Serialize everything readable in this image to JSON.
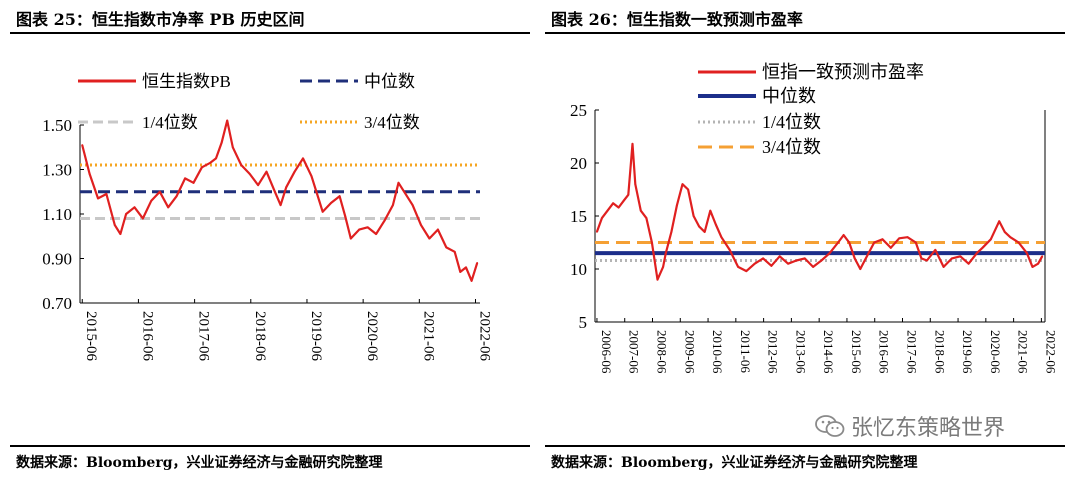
{
  "left": {
    "title": "图表 25：恒生指数市净率 PB 历史区间",
    "source": "数据来源：Bloomberg，兴业证券经济与金融研究院整理"
  },
  "right": {
    "title": "图表 26：恒生指数一致预测市盈率",
    "source": "数据来源：Bloomberg，兴业证券经济与金融研究院整理"
  },
  "watermark": "张忆东策略世界",
  "colors": {
    "series": "#e02020",
    "median": "#1f2f7a",
    "q1_left": "#c8c8c8",
    "q3_left": "#f5a623",
    "median_right": "#1c2e8a",
    "q1_right": "#b4b4b4",
    "q3_right": "#f5a034"
  },
  "chart_data": [
    {
      "type": "line",
      "title": "恒生指数市净率 PB 历史区间",
      "legend": [
        "恒生指数PB",
        "中位数",
        "1/4位数",
        "3/4位数"
      ],
      "categories": [
        "2015-06",
        "2016-06",
        "2017-06",
        "2018-06",
        "2019-06",
        "2020-06",
        "2021-06",
        "2022-06"
      ],
      "yticks": [
        "1.50",
        "1.30",
        "1.10",
        "0.90",
        "0.70"
      ],
      "ylim": [
        0.7,
        1.5
      ],
      "x": [
        2015.42,
        2015.55,
        2015.7,
        2015.85,
        2016.0,
        2016.1,
        2016.2,
        2016.35,
        2016.5,
        2016.65,
        2016.8,
        2016.95,
        2017.1,
        2017.25,
        2017.4,
        2017.55,
        2017.7,
        2017.8,
        2017.9,
        2018.0,
        2018.1,
        2018.25,
        2018.4,
        2018.55,
        2018.7,
        2018.85,
        2018.95,
        2019.05,
        2019.2,
        2019.35,
        2019.5,
        2019.6,
        2019.7,
        2019.85,
        2020.0,
        2020.1,
        2020.2,
        2020.35,
        2020.5,
        2020.65,
        2020.8,
        2020.95,
        2021.05,
        2021.15,
        2021.3,
        2021.45,
        2021.6,
        2021.75,
        2021.9,
        2022.05,
        2022.15,
        2022.25,
        2022.35,
        2022.45
      ],
      "values": [
        1.41,
        1.28,
        1.17,
        1.19,
        1.05,
        1.01,
        1.1,
        1.13,
        1.08,
        1.16,
        1.2,
        1.13,
        1.18,
        1.26,
        1.24,
        1.31,
        1.33,
        1.35,
        1.42,
        1.52,
        1.4,
        1.32,
        1.28,
        1.23,
        1.29,
        1.2,
        1.14,
        1.22,
        1.29,
        1.35,
        1.27,
        1.19,
        1.11,
        1.15,
        1.18,
        1.09,
        0.99,
        1.03,
        1.04,
        1.01,
        1.07,
        1.14,
        1.24,
        1.2,
        1.14,
        1.05,
        0.99,
        1.03,
        0.95,
        0.93,
        0.84,
        0.86,
        0.8,
        0.88
      ],
      "reference_lines": {
        "median": 1.2,
        "q1": 1.08,
        "q3": 1.32
      }
    },
    {
      "type": "line",
      "title": "恒生指数一致预测市盈率",
      "legend": [
        "恒指一致预测市盈率",
        "中位数",
        "1/4位数",
        "3/4位数"
      ],
      "categories": [
        "2006-06",
        "2007-06",
        "2008-06",
        "2009-06",
        "2010-06",
        "2011-06",
        "2012-06",
        "2013-06",
        "2014-06",
        "2015-06",
        "2016-06",
        "2017-06",
        "2018-06",
        "2019-06",
        "2020-06",
        "2021-06",
        "2022-06"
      ],
      "yticks": [
        "25",
        "20",
        "15",
        "10",
        "5"
      ],
      "ylim": [
        5,
        25
      ],
      "x": [
        2006.42,
        2006.6,
        2006.8,
        2007.0,
        2007.2,
        2007.4,
        2007.55,
        2007.7,
        2007.8,
        2008.0,
        2008.2,
        2008.4,
        2008.6,
        2008.8,
        2008.9,
        2009.1,
        2009.3,
        2009.5,
        2009.7,
        2009.9,
        2010.1,
        2010.3,
        2010.5,
        2010.7,
        2010.9,
        2011.2,
        2011.5,
        2011.8,
        2012.1,
        2012.4,
        2012.7,
        2013.0,
        2013.3,
        2013.6,
        2013.9,
        2014.2,
        2014.5,
        2014.8,
        2015.1,
        2015.3,
        2015.5,
        2015.7,
        2015.9,
        2016.1,
        2016.4,
        2016.7,
        2017.0,
        2017.3,
        2017.6,
        2017.9,
        2018.1,
        2018.3,
        2018.6,
        2018.9,
        2019.2,
        2019.5,
        2019.8,
        2020.1,
        2020.3,
        2020.6,
        2020.9,
        2021.1,
        2021.3,
        2021.6,
        2021.9,
        2022.1,
        2022.3,
        2022.45
      ],
      "values": [
        13.5,
        14.8,
        15.5,
        16.2,
        15.8,
        16.5,
        17.0,
        21.8,
        18.0,
        15.5,
        14.8,
        12.5,
        9.0,
        10.2,
        11.5,
        13.5,
        16.0,
        18.0,
        17.5,
        15.0,
        14.0,
        13.5,
        15.5,
        14.2,
        13.0,
        11.8,
        10.2,
        9.8,
        10.5,
        11.0,
        10.3,
        11.2,
        10.5,
        10.8,
        11.0,
        10.2,
        10.8,
        11.5,
        12.5,
        13.2,
        12.5,
        11.0,
        10.0,
        11.0,
        12.5,
        12.8,
        12.0,
        12.9,
        13.0,
        12.5,
        11.0,
        10.8,
        11.8,
        10.2,
        11.0,
        11.2,
        10.5,
        11.5,
        12.0,
        12.8,
        14.5,
        13.5,
        13.0,
        12.5,
        11.5,
        10.2,
        10.5,
        11.2
      ],
      "reference_lines": {
        "median": 11.5,
        "q1": 10.8,
        "q3": 12.5
      }
    }
  ]
}
